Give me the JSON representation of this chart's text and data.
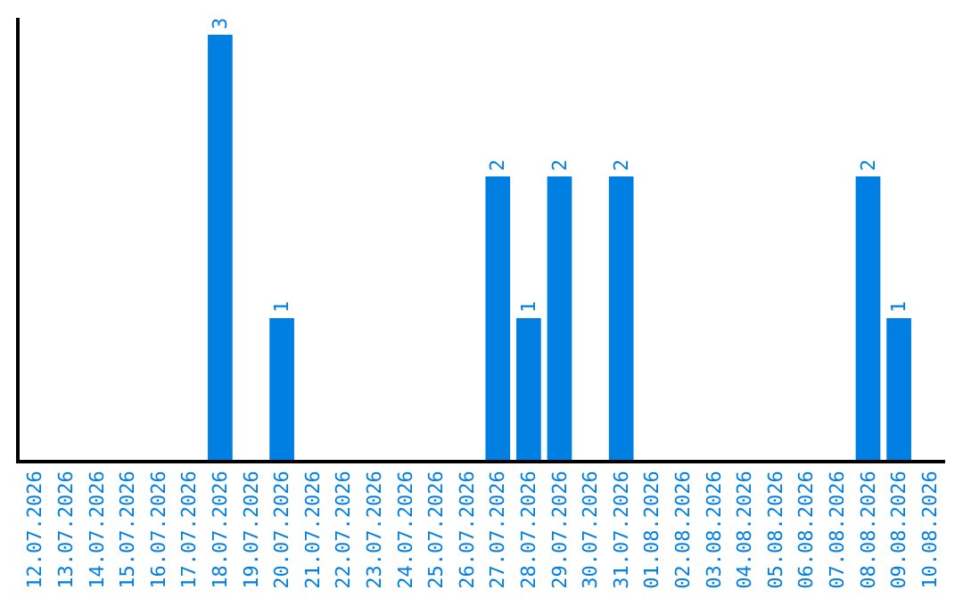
{
  "chart_data": {
    "type": "bar",
    "categories": [
      "12.07.2026",
      "13.07.2026",
      "14.07.2026",
      "15.07.2026",
      "16.07.2026",
      "17.07.2026",
      "18.07.2026",
      "19.07.2026",
      "20.07.2026",
      "21.07.2026",
      "22.07.2026",
      "23.07.2026",
      "24.07.2026",
      "25.07.2026",
      "26.07.2026",
      "27.07.2026",
      "28.07.2026",
      "29.07.2026",
      "30.07.2026",
      "31.07.2026",
      "01.08.2026",
      "02.08.2026",
      "03.08.2026",
      "04.08.2026",
      "05.08.2026",
      "06.08.2026",
      "07.08.2026",
      "08.08.2026",
      "09.08.2026",
      "10.08.2026"
    ],
    "values": [
      0,
      0,
      0,
      0,
      0,
      0,
      3,
      0,
      1,
      0,
      0,
      0,
      0,
      0,
      0,
      2,
      1,
      2,
      0,
      2,
      0,
      0,
      0,
      0,
      0,
      0,
      0,
      2,
      1,
      0
    ],
    "value_labels": [
      null,
      null,
      null,
      null,
      null,
      null,
      "3",
      null,
      "1",
      null,
      null,
      null,
      null,
      null,
      null,
      "2",
      "1",
      "2",
      null,
      "2",
      null,
      null,
      null,
      null,
      null,
      null,
      null,
      "2",
      "1",
      null
    ],
    "color": "#007fe3",
    "tick_labels": "x"
  }
}
